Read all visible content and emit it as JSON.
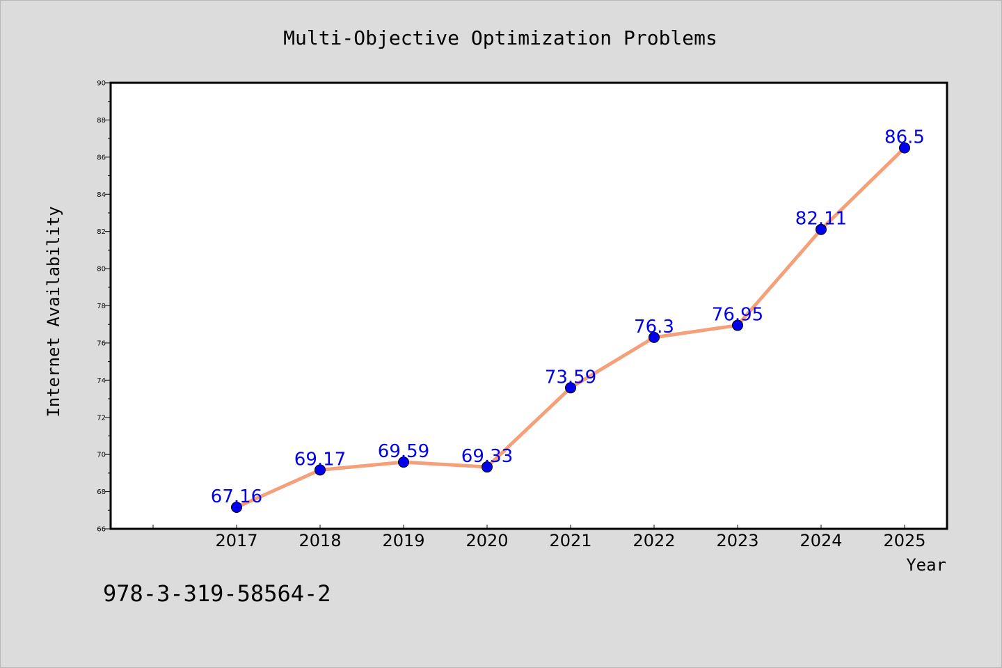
{
  "chart_data": {
    "type": "line",
    "title": "Multi-Objective Optimization Problems",
    "xlabel": "Year",
    "ylabel": "Internet Availability",
    "categories": [
      "2017",
      "2018",
      "2019",
      "2020",
      "2021",
      "2022",
      "2023",
      "2024",
      "2025"
    ],
    "series": [
      {
        "values": [
          67.16,
          69.17,
          69.59,
          69.33,
          73.59,
          76.3,
          76.95,
          82.11,
          86.5
        ],
        "labels": [
          "67.16",
          "69.17",
          "69.59",
          "69.33",
          "73.59",
          "76.3",
          "76.95",
          "82.11",
          "86.5"
        ],
        "line_color": "#f4a07a",
        "marker_color": "#0000ee",
        "label_color": "#0000ee"
      }
    ],
    "ylim": [
      66,
      90
    ],
    "yticks": [
      66,
      68,
      70,
      72,
      74,
      76,
      78,
      80,
      82,
      84,
      86,
      88,
      90
    ],
    "ytick_labels": [
      "66",
      "68",
      "70",
      "72",
      "74",
      "76",
      "78",
      "80",
      "82",
      "84",
      "86",
      "88",
      "90"
    ],
    "grid": false,
    "legend": "none"
  },
  "footer": {
    "isbn": "978-3-319-58564-2"
  },
  "colors": {
    "background": "#dcdcdc",
    "plot_background": "#ffffff",
    "axes": "#000000"
  }
}
